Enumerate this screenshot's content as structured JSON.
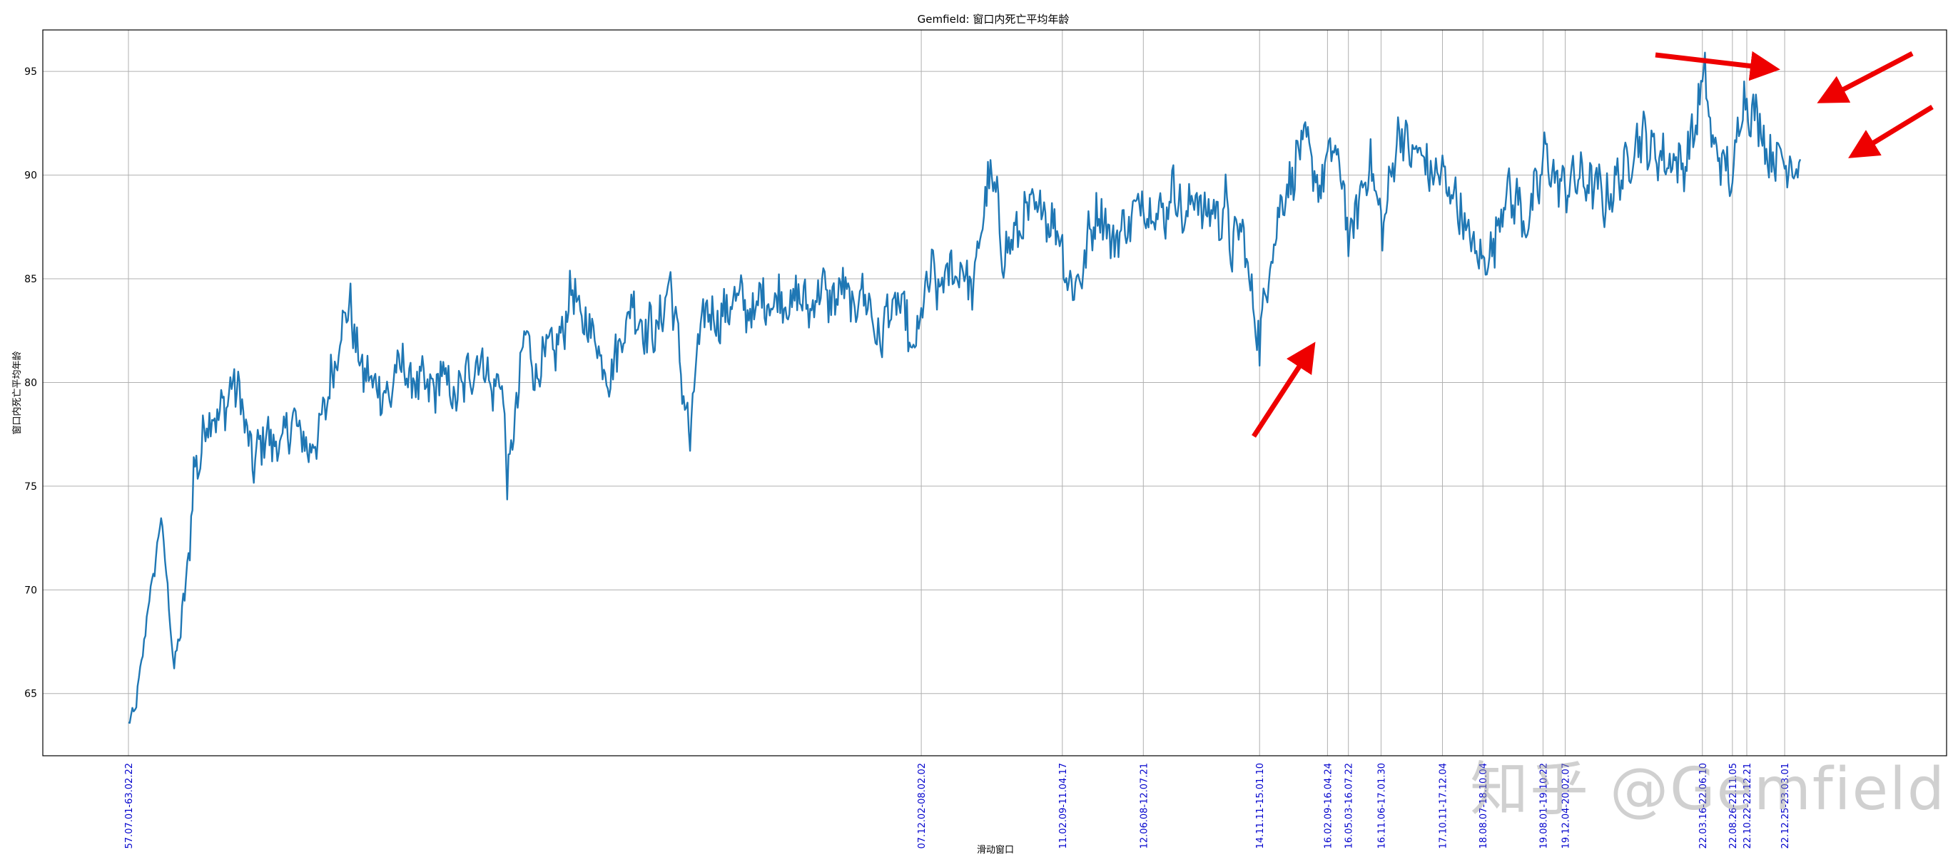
{
  "chart_data": {
    "type": "line",
    "title": "Gemfield: 窗口内死亡平均年龄",
    "xlabel": "滑动窗口",
    "ylabel": "窗口内死亡平均年龄",
    "ylim": [
      62,
      97
    ],
    "yticks": [
      65,
      70,
      75,
      80,
      85,
      90,
      95
    ],
    "grid": true,
    "line_color": "#1f77b4",
    "xtick_color": "#0000cc",
    "arrow_color": "#ee0000",
    "x_count": 1400,
    "xticks": [
      {
        "index": 0,
        "label": "57.07.01-63.02.22"
      },
      {
        "index": 607,
        "label": "07.12.02-08.02.02"
      },
      {
        "index": 715,
        "label": "11.02.09-11.04.17"
      },
      {
        "index": 777,
        "label": "12.06.08-12.07.21"
      },
      {
        "index": 866,
        "label": "14.11.11-15.01.10"
      },
      {
        "index": 918,
        "label": "16.02.09-16.04.24"
      },
      {
        "index": 934,
        "label": "16.05.03-16.07.22"
      },
      {
        "index": 959,
        "label": "16.11.06-17.01.30"
      },
      {
        "index": 1006,
        "label": "17.10.11-17.12.04"
      },
      {
        "index": 1037,
        "label": "18.08.07-18.10.04"
      },
      {
        "index": 1083,
        "label": "19.08.01-19.10.22"
      },
      {
        "index": 1100,
        "label": "19.12.04-20.02.07"
      },
      {
        "index": 1205,
        "label": "22.03.16-22.06.10"
      },
      {
        "index": 1228,
        "label": "22.08.26-22.11.05"
      },
      {
        "index": 1239,
        "label": "22.10.22-22.12.21"
      },
      {
        "index": 1268,
        "label": "22.12.25-23.03.01"
      }
    ],
    "anchors": [
      [
        0,
        63.5
      ],
      [
        5,
        64.2
      ],
      [
        10,
        66.4
      ],
      [
        15,
        69.2
      ],
      [
        20,
        71.0
      ],
      [
        25,
        73.6
      ],
      [
        30,
        70.0
      ],
      [
        35,
        66.2
      ],
      [
        40,
        68.2
      ],
      [
        45,
        70.5
      ],
      [
        50,
        75.7
      ],
      [
        55,
        76.3
      ],
      [
        60,
        78.5
      ],
      [
        65,
        78.3
      ],
      [
        70,
        78.5
      ],
      [
        75,
        79.0
      ],
      [
        80,
        80.0
      ],
      [
        85,
        79.5
      ],
      [
        90,
        77.8
      ],
      [
        95,
        76.0
      ],
      [
        100,
        76.8
      ],
      [
        105,
        77.6
      ],
      [
        110,
        77.1
      ],
      [
        115,
        76.9
      ],
      [
        120,
        77.3
      ],
      [
        125,
        78.2
      ],
      [
        130,
        77.8
      ],
      [
        135,
        77.0
      ],
      [
        140,
        76.8
      ],
      [
        145,
        77.5
      ],
      [
        150,
        78.5
      ],
      [
        155,
        80.2
      ],
      [
        160,
        81.6
      ],
      [
        165,
        83.2
      ],
      [
        170,
        83.6
      ],
      [
        175,
        81.5
      ],
      [
        180,
        80.4
      ],
      [
        185,
        80.2
      ],
      [
        190,
        79.8
      ],
      [
        195,
        79.6
      ],
      [
        200,
        79.2
      ],
      [
        205,
        80.6
      ],
      [
        210,
        80.9
      ],
      [
        215,
        80.1
      ],
      [
        220,
        80.0
      ],
      [
        225,
        79.9
      ],
      [
        230,
        79.6
      ],
      [
        235,
        79.7
      ],
      [
        240,
        80.5
      ],
      [
        245,
        79.8
      ],
      [
        250,
        79.1
      ],
      [
        255,
        79.7
      ],
      [
        260,
        80.5
      ],
      [
        265,
        80.7
      ],
      [
        270,
        81.3
      ],
      [
        275,
        80.4
      ],
      [
        280,
        79.3
      ],
      [
        285,
        80.8
      ],
      [
        290,
        75.4
      ],
      [
        295,
        77.5
      ],
      [
        300,
        80.5
      ],
      [
        305,
        82.8
      ],
      [
        310,
        80.4
      ],
      [
        315,
        80.6
      ],
      [
        320,
        81.6
      ],
      [
        325,
        81.4
      ],
      [
        330,
        82.0
      ],
      [
        335,
        83.1
      ],
      [
        340,
        84.9
      ],
      [
        345,
        83.0
      ],
      [
        350,
        82.9
      ],
      [
        355,
        82.6
      ],
      [
        360,
        81.7
      ],
      [
        365,
        80.6
      ],
      [
        370,
        80.4
      ],
      [
        375,
        81.9
      ],
      [
        380,
        82.4
      ],
      [
        385,
        84.0
      ],
      [
        390,
        83.2
      ],
      [
        395,
        82.5
      ],
      [
        400,
        82.7
      ],
      [
        405,
        82.3
      ],
      [
        410,
        83.8
      ],
      [
        415,
        84.9
      ],
      [
        420,
        82.3
      ],
      [
        425,
        79.5
      ],
      [
        430,
        77.1
      ],
      [
        435,
        81.2
      ],
      [
        440,
        83.0
      ],
      [
        445,
        83.7
      ],
      [
        450,
        82.9
      ],
      [
        455,
        83.3
      ],
      [
        460,
        83.6
      ],
      [
        465,
        84.2
      ],
      [
        470,
        83.9
      ],
      [
        475,
        83.4
      ],
      [
        480,
        83.2
      ],
      [
        485,
        84.5
      ],
      [
        490,
        83.7
      ],
      [
        495,
        83.9
      ],
      [
        500,
        84.4
      ],
      [
        505,
        83.5
      ],
      [
        510,
        84.0
      ],
      [
        515,
        84.2
      ],
      [
        520,
        83.5
      ],
      [
        525,
        83.8
      ],
      [
        530,
        84.9
      ],
      [
        535,
        84.0
      ],
      [
        540,
        83.9
      ],
      [
        545,
        84.5
      ],
      [
        550,
        84.5
      ],
      [
        555,
        83.0
      ],
      [
        560,
        84.7
      ],
      [
        565,
        84.0
      ],
      [
        570,
        83.2
      ],
      [
        575,
        81.5
      ],
      [
        580,
        83.5
      ],
      [
        585,
        83.3
      ],
      [
        590,
        83.8
      ],
      [
        595,
        83.2
      ],
      [
        600,
        81.0
      ],
      [
        605,
        82.6
      ],
      [
        610,
        84.2
      ],
      [
        615,
        85.4
      ],
      [
        620,
        84.3
      ],
      [
        625,
        85.0
      ],
      [
        630,
        85.5
      ],
      [
        635,
        85.1
      ],
      [
        640,
        85.8
      ],
      [
        645,
        84.0
      ],
      [
        650,
        86.0
      ],
      [
        655,
        88.5
      ],
      [
        660,
        90.0
      ],
      [
        665,
        88.6
      ],
      [
        670,
        86.0
      ],
      [
        675,
        86.8
      ],
      [
        680,
        87.1
      ],
      [
        685,
        87.7
      ],
      [
        690,
        88.5
      ],
      [
        695,
        88.0
      ],
      [
        700,
        88.8
      ],
      [
        705,
        87.6
      ],
      [
        710,
        87.8
      ],
      [
        715,
        86.5
      ],
      [
        720,
        84.6
      ],
      [
        725,
        84.9
      ],
      [
        730,
        85.1
      ],
      [
        735,
        87.0
      ],
      [
        740,
        87.9
      ],
      [
        745,
        88.4
      ],
      [
        750,
        87.3
      ],
      [
        755,
        86.6
      ],
      [
        760,
        87.6
      ],
      [
        765,
        87.5
      ],
      [
        770,
        88.1
      ],
      [
        775,
        89.0
      ],
      [
        780,
        88.3
      ],
      [
        785,
        88.5
      ],
      [
        790,
        88.1
      ],
      [
        795,
        88.2
      ],
      [
        800,
        89.8
      ],
      [
        805,
        88.4
      ],
      [
        810,
        87.5
      ],
      [
        815,
        89.5
      ],
      [
        820,
        88.5
      ],
      [
        825,
        88.0
      ],
      [
        830,
        88.6
      ],
      [
        835,
        87.7
      ],
      [
        840,
        88.8
      ],
      [
        845,
        86.0
      ],
      [
        850,
        87.8
      ],
      [
        855,
        86.5
      ],
      [
        860,
        84.0
      ],
      [
        865,
        82.6
      ],
      [
        866,
        81.5
      ],
      [
        870,
        84.3
      ],
      [
        875,
        86.2
      ],
      [
        880,
        87.8
      ],
      [
        885,
        89.3
      ],
      [
        890,
        89.6
      ],
      [
        895,
        91.0
      ],
      [
        900,
        91.6
      ],
      [
        905,
        90.9
      ],
      [
        910,
        89.5
      ],
      [
        915,
        89.8
      ],
      [
        920,
        91.3
      ],
      [
        925,
        90.8
      ],
      [
        930,
        89.6
      ],
      [
        935,
        86.4
      ],
      [
        940,
        88.4
      ],
      [
        945,
        89.4
      ],
      [
        950,
        90.7
      ],
      [
        955,
        89.2
      ],
      [
        960,
        87.3
      ],
      [
        965,
        89.2
      ],
      [
        970,
        91.4
      ],
      [
        975,
        92.3
      ],
      [
        980,
        91.1
      ],
      [
        985,
        91.0
      ],
      [
        990,
        91.1
      ],
      [
        995,
        90.2
      ],
      [
        1000,
        89.9
      ],
      [
        1005,
        90.3
      ],
      [
        1010,
        89.1
      ],
      [
        1015,
        89.4
      ],
      [
        1020,
        88.0
      ],
      [
        1025,
        87.2
      ],
      [
        1030,
        86.5
      ],
      [
        1035,
        85.8
      ],
      [
        1040,
        86.1
      ],
      [
        1045,
        86.5
      ],
      [
        1050,
        88.1
      ],
      [
        1055,
        89.6
      ],
      [
        1060,
        88.5
      ],
      [
        1065,
        88.9
      ],
      [
        1070,
        87.2
      ],
      [
        1075,
        88.8
      ],
      [
        1080,
        89.4
      ],
      [
        1085,
        91.3
      ],
      [
        1090,
        90.0
      ],
      [
        1095,
        89.7
      ],
      [
        1100,
        89.3
      ],
      [
        1105,
        89.8
      ],
      [
        1110,
        89.8
      ],
      [
        1115,
        89.8
      ],
      [
        1120,
        89.4
      ],
      [
        1125,
        89.5
      ],
      [
        1130,
        88.6
      ],
      [
        1135,
        89.2
      ],
      [
        1140,
        89.8
      ],
      [
        1145,
        90.2
      ],
      [
        1150,
        90.9
      ],
      [
        1155,
        91.8
      ],
      [
        1160,
        91.9
      ],
      [
        1165,
        91.2
      ],
      [
        1170,
        91.1
      ],
      [
        1175,
        90.8
      ],
      [
        1180,
        90.6
      ],
      [
        1185,
        90.9
      ],
      [
        1190,
        90.2
      ],
      [
        1195,
        91.5
      ],
      [
        1200,
        92.4
      ],
      [
        1205,
        94.4
      ],
      [
        1207,
        95.2
      ],
      [
        1210,
        92.5
      ],
      [
        1215,
        91.2
      ],
      [
        1220,
        90.6
      ],
      [
        1225,
        90.3
      ],
      [
        1228,
        89.0
      ],
      [
        1231,
        91.5
      ],
      [
        1234,
        93.4
      ],
      [
        1237,
        93.6
      ],
      [
        1240,
        93.5
      ],
      [
        1243,
        92.8
      ],
      [
        1246,
        93.0
      ],
      [
        1250,
        92.4
      ],
      [
        1254,
        91.2
      ],
      [
        1258,
        90.8
      ],
      [
        1262,
        91.0
      ],
      [
        1266,
        90.8
      ],
      [
        1270,
        90.6
      ],
      [
        1275,
        90.7
      ],
      [
        1280,
        90.2
      ]
    ]
  },
  "watermark": "知乎 @Gemfield"
}
